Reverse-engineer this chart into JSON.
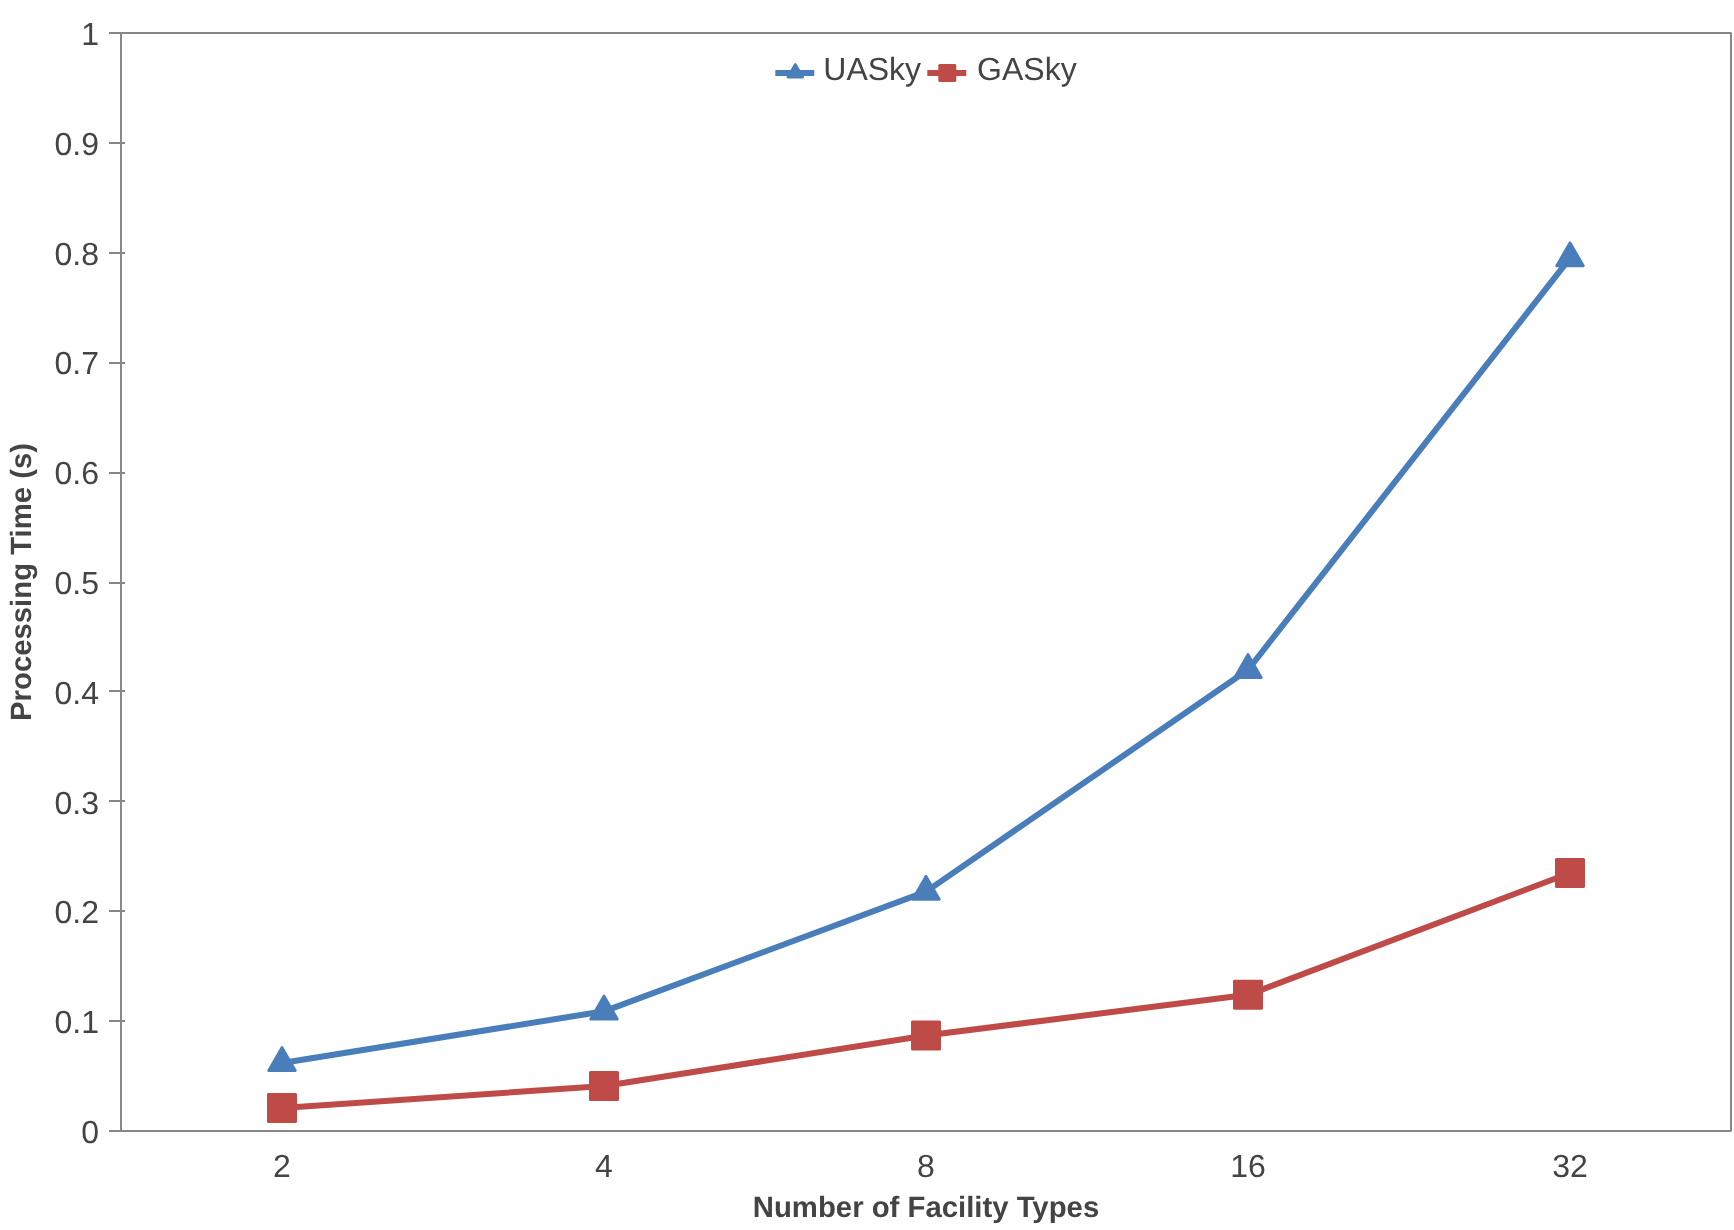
{
  "chart_data": {
    "type": "line",
    "xlabel": "Number of Facility Types",
    "ylabel": "Processing Time (s)",
    "categories": [
      "2",
      "4",
      "8",
      "16",
      "32"
    ],
    "series": [
      {
        "name": "UASky",
        "color": "#4a7ebb",
        "marker": "triangle",
        "values": [
          0.062,
          0.109,
          0.218,
          0.42,
          0.795
        ]
      },
      {
        "name": "GASky",
        "color": "#be4b48",
        "marker": "square",
        "values": [
          0.021,
          0.041,
          0.087,
          0.124,
          0.235
        ]
      }
    ],
    "ylim": [
      0,
      1
    ],
    "yticks": [
      0,
      0.1,
      0.2,
      0.3,
      0.4,
      0.5,
      0.6,
      0.7,
      0.8,
      0.9,
      1
    ],
    "grid": false,
    "legend": "top",
    "line_style": "solid"
  }
}
